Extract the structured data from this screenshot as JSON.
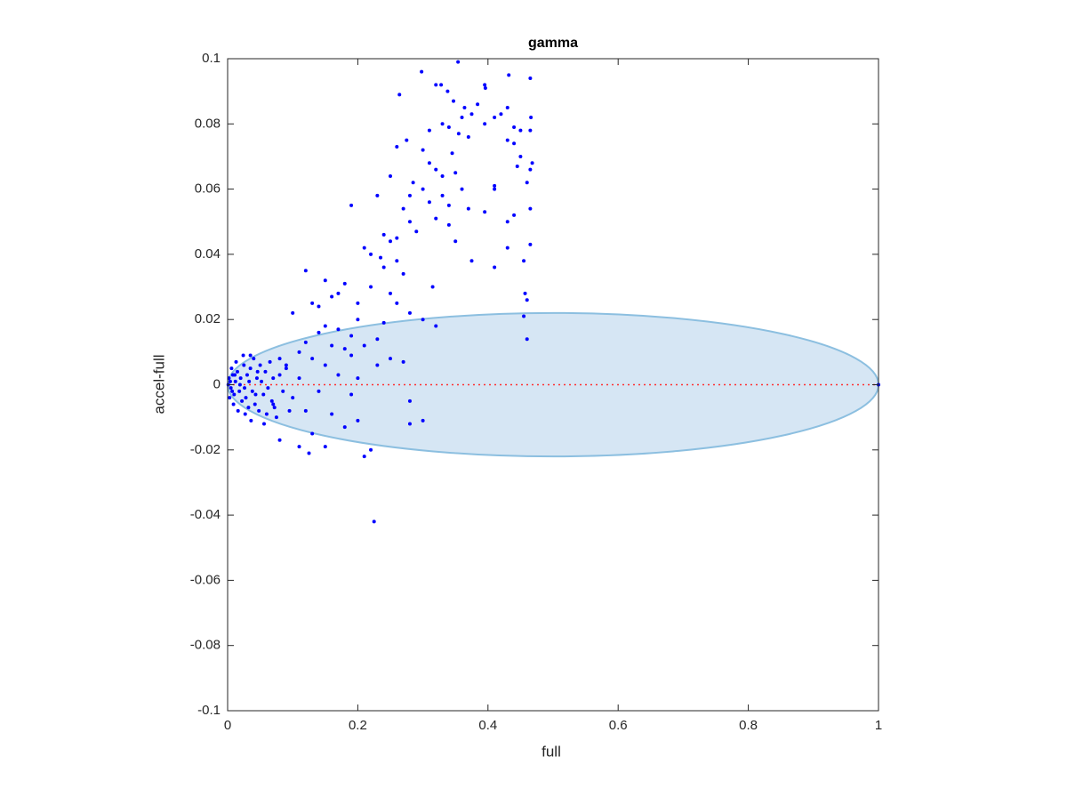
{
  "chart_data": {
    "type": "scatter",
    "title": "gamma",
    "x_label": "full",
    "y_label": "accel-full",
    "color": "#0000ff",
    "x": [
      0.354,
      0.298,
      0.432,
      0.465,
      0.395,
      0.396,
      0.32,
      0.328,
      0.338,
      0.264,
      0.347,
      0.384,
      0.364,
      0.43,
      0.375,
      0.42,
      0.466,
      0.36,
      0.33,
      0.41,
      0.395,
      0.44,
      0.31,
      0.34,
      0.275,
      0.45,
      0.465,
      0.355,
      0.37,
      0.43,
      0.44,
      0.26,
      0.3,
      0.45,
      0.345,
      0.31,
      0.32,
      0.33,
      0.35,
      0.445,
      0.468,
      0.465,
      0.25,
      0.285,
      0.3,
      0.33,
      0.36,
      0.41,
      0.46,
      0.41,
      0.23,
      0.28,
      0.31,
      0.34,
      0.37,
      0.395,
      0.44,
      0.43,
      0.465,
      0.19,
      0.27,
      0.28,
      0.32,
      0.34,
      0.29,
      0.35,
      0.24,
      0.25,
      0.26,
      0.43,
      0.465,
      0.21,
      0.22,
      0.235,
      0.26,
      0.24,
      0.27,
      0.375,
      0.41,
      0.315,
      0.455,
      0.457,
      0.46,
      0.25,
      0.26,
      0.28,
      0.3,
      0.22,
      0.18,
      0.17,
      0.15,
      0.12,
      0.16,
      0.2,
      0.13,
      0.14,
      0.455,
      0.46,
      0.32,
      0.1,
      0.2,
      0.24,
      0.15,
      0.17,
      0.19,
      0.23,
      0.14,
      0.16,
      0.12,
      0.18,
      0.21,
      0.11,
      0.13,
      0.19,
      0.25,
      0.27,
      0.23,
      0.09,
      0.08,
      0.15,
      0.17,
      0.2,
      0.11,
      0.035,
      0.14,
      0.19,
      0.1,
      0.07,
      0.12,
      0.16,
      0.2,
      0.28,
      0.3,
      0.13,
      0.18,
      0.08,
      0.11,
      0.15,
      0.22,
      0.21,
      0.125,
      0.225,
      0.28,
      0.095,
      0.002,
      0.005,
      0.008,
      0.01,
      0.012,
      0.015,
      0.018,
      0.02,
      0.022,
      0.025,
      0.028,
      0.03,
      0.032,
      0.035,
      0.038,
      0.04,
      0.042,
      0.045,
      0.048,
      0.05,
      0.055,
      0.058,
      0.06,
      0.065,
      0.068,
      0.07,
      0.075,
      0.08,
      0.085,
      0.003,
      0.006,
      0.009,
      0.013,
      0.016,
      0.024,
      0.027,
      0.033,
      0.043,
      0.052,
      0.062,
      0.001,
      0.004,
      0.007,
      0.011,
      0.019,
      0.026,
      0.036,
      0.046,
      0.056,
      0.072,
      0.09,
      1
    ],
    "values": [
      0.099,
      0.096,
      0.095,
      0.094,
      0.092,
      0.091,
      0.092,
      0.092,
      0.09,
      0.089,
      0.087,
      0.086,
      0.085,
      0.085,
      0.083,
      0.083,
      0.082,
      0.082,
      0.08,
      0.082,
      0.08,
      0.079,
      0.078,
      0.079,
      0.075,
      0.078,
      0.078,
      0.077,
      0.076,
      0.075,
      0.074,
      0.073,
      0.072,
      0.07,
      0.071,
      0.068,
      0.066,
      0.064,
      0.065,
      0.067,
      0.068,
      0.066,
      0.064,
      0.062,
      0.06,
      0.058,
      0.06,
      0.06,
      0.062,
      0.061,
      0.058,
      0.058,
      0.056,
      0.055,
      0.054,
      0.053,
      0.052,
      0.05,
      0.054,
      0.055,
      0.054,
      0.05,
      0.051,
      0.049,
      0.047,
      0.044,
      0.046,
      0.044,
      0.045,
      0.042,
      0.043,
      0.042,
      0.04,
      0.039,
      0.038,
      0.036,
      0.034,
      0.038,
      0.036,
      0.03,
      0.038,
      0.028,
      0.026,
      0.028,
      0.025,
      0.022,
      0.02,
      0.03,
      0.031,
      0.028,
      0.032,
      0.035,
      0.027,
      0.025,
      0.025,
      0.024,
      0.021,
      0.014,
      0.018,
      0.022,
      0.02,
      0.019,
      0.018,
      0.017,
      0.015,
      0.014,
      0.016,
      0.012,
      0.013,
      0.011,
      0.012,
      0.01,
      0.008,
      0.009,
      0.008,
      0.007,
      0.006,
      0.005,
      0.003,
      0.006,
      0.003,
      0.002,
      0.002,
      0.009,
      -0.002,
      -0.003,
      -0.004,
      -0.006,
      -0.008,
      -0.009,
      -0.011,
      -0.012,
      -0.011,
      -0.015,
      -0.013,
      -0.017,
      -0.019,
      -0.019,
      -0.02,
      -0.022,
      -0.021,
      -0.042,
      -0.005,
      -0.008,
      0.002,
      -0.001,
      0.003,
      -0.003,
      0.001,
      0.004,
      -0.002,
      0.002,
      -0.005,
      0.006,
      -0.004,
      0.003,
      -0.007,
      0.005,
      -0.002,
      0.008,
      -0.006,
      0.002,
      -0.008,
      0.006,
      -0.003,
      0.004,
      -0.009,
      0.007,
      -0.005,
      0.002,
      -0.01,
      0.008,
      -0.002,
      -0.004,
      0.005,
      -0.006,
      0.007,
      -0.008,
      0.009,
      -0.009,
      0.001,
      -0.003,
      0.001,
      -0.001,
      0,
      0.001,
      -0.002,
      0.003,
      0,
      -0.001,
      -0.011,
      0.004,
      -0.012,
      -0.007,
      0.006,
      0
    ],
    "ellipse": {
      "center": [
        0.5,
        0
      ],
      "radii": [
        0.5,
        0.022
      ],
      "color": "#d6e6f4",
      "edge_color": "#8cbfe0"
    },
    "refline": {
      "y": 0,
      "xrange": [
        0,
        1
      ],
      "color": "#ff3030"
    },
    "xlim": [
      0,
      1
    ],
    "ylim": [
      -0.1,
      0.1
    ],
    "xticks": [
      0,
      0.2,
      0.4,
      0.6,
      0.8,
      1
    ],
    "yticks": [
      -0.1,
      -0.08,
      -0.06,
      -0.04,
      -0.02,
      0,
      0.02,
      0.04,
      0.06,
      0.08,
      0.1
    ],
    "grid": false
  }
}
